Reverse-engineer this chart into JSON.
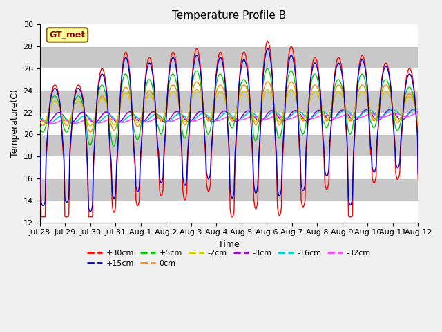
{
  "title": "Temperature Profile B",
  "xlabel": "Time",
  "ylabel": "Temperature(C)",
  "ylim": [
    12,
    30
  ],
  "yticks": [
    12,
    14,
    16,
    18,
    20,
    22,
    24,
    26,
    28,
    30
  ],
  "xtick_labels": [
    "Jul 28",
    "Jul 29",
    "Jul 30",
    "Jul 31",
    "Aug 1",
    "Aug 2",
    "Aug 3",
    "Aug 4",
    "Aug 5",
    "Aug 6",
    "Aug 7",
    "Aug 8",
    "Aug 9",
    "Aug 10",
    "Aug 11",
    "Aug 12"
  ],
  "annotation_text": "GT_met",
  "series_colors": {
    "+30cm": "#FF0000",
    "+15cm": "#0000CC",
    "+5cm": "#00CC00",
    "0cm": "#FF8800",
    "-2cm": "#CCCC00",
    "-8cm": "#9900CC",
    "-16cm": "#00CCCC",
    "-32cm": "#FF44FF"
  },
  "fig_width": 6.4,
  "fig_height": 4.8,
  "dpi": 100,
  "bg_color": "#F0F0F0",
  "plot_bg_color": "#D8D8D8",
  "band_color_light": "#E8E8E8",
  "band_color_dark": "#C8C8C8",
  "title_fontsize": 11,
  "axis_fontsize": 9,
  "tick_fontsize": 8,
  "legend_fontsize": 8
}
